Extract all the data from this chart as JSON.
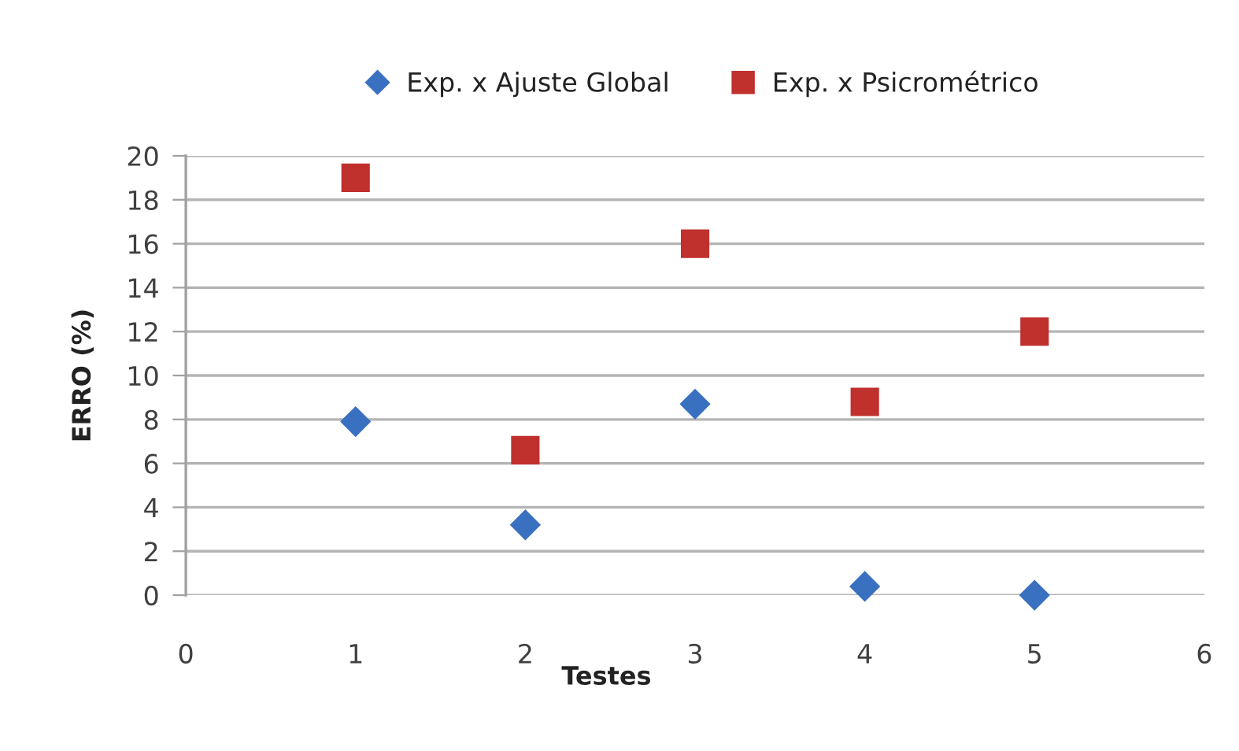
{
  "chart_data": {
    "type": "scatter",
    "xlabel": "Testes",
    "ylabel": "ERRO (%)",
    "x": [
      1,
      2,
      3,
      4,
      5
    ],
    "series": [
      {
        "name": "Exp. x Ajuste Global",
        "color": "#3a70c0",
        "marker": "diamond",
        "values": [
          7.9,
          3.2,
          8.7,
          0.4,
          0.0
        ]
      },
      {
        "name": "Exp. x Psicrométrico",
        "color": "#c0302c",
        "marker": "square",
        "values": [
          19.0,
          6.6,
          16.0,
          8.8,
          12.0
        ]
      }
    ],
    "xlim": [
      0,
      6
    ],
    "xticks": [
      0,
      1,
      2,
      3,
      4,
      5,
      6
    ],
    "ylim": [
      0,
      20
    ],
    "yticks": [
      0,
      2,
      4,
      6,
      8,
      10,
      12,
      14,
      16,
      18,
      20
    ],
    "grid": "y",
    "legend": "top"
  }
}
